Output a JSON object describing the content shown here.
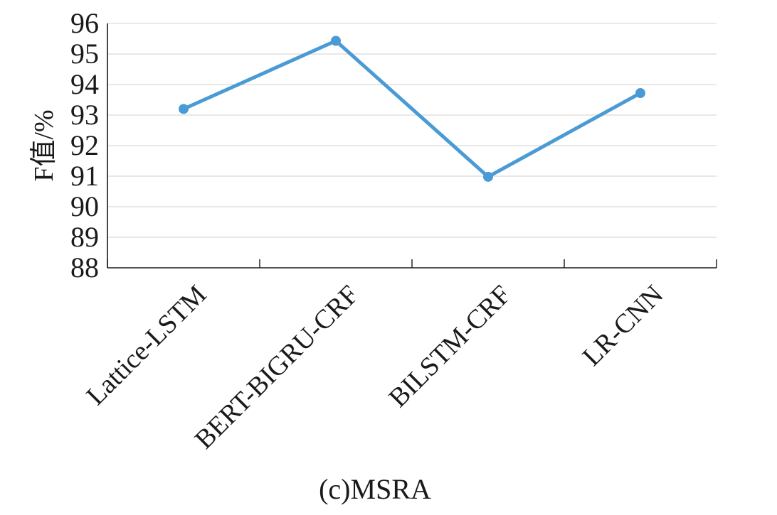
{
  "chart_data": {
    "type": "line",
    "categories": [
      "Lattice-LSTM",
      "BERT-BIGRU-CRF",
      "BILSTM-CRF",
      "LR-CNN"
    ],
    "series": [
      {
        "values": [
          93.2,
          95.43,
          90.98,
          93.72
        ],
        "color": "#4a9bd5"
      }
    ],
    "title": "",
    "xlabel": "",
    "ylabel": "F值/%",
    "ylim": [
      88,
      96
    ],
    "yticks": [
      88,
      89,
      90,
      91,
      92,
      93,
      94,
      95,
      96
    ],
    "grid": true,
    "legend": "none",
    "caption": "(c)MSRA"
  }
}
